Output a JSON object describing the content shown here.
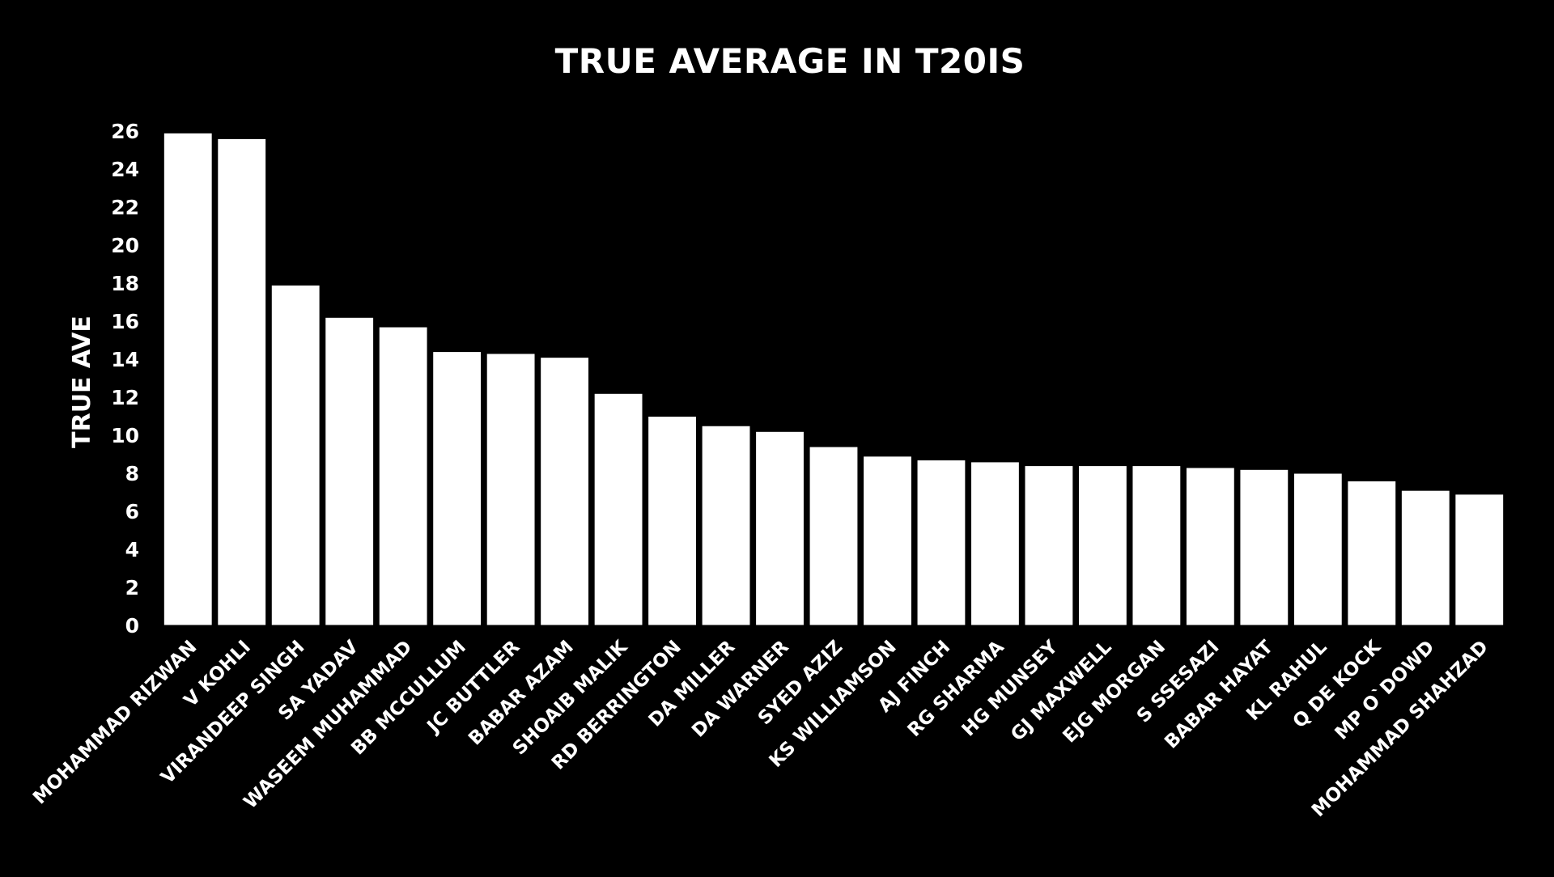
{
  "colors": {
    "background": "#000000",
    "bar": "#ffffff",
    "text": "#ffffff",
    "bar_stroke": "#000000"
  },
  "chart_data": {
    "type": "bar",
    "title": "TRUE AVERAGE IN T20IS",
    "xlabel": "",
    "ylabel": "TRUE AVE",
    "ylim": [
      0,
      26
    ],
    "yticks": [
      0,
      2,
      4,
      6,
      8,
      10,
      12,
      14,
      16,
      18,
      20,
      22,
      24,
      26
    ],
    "grid": false,
    "legend": "none",
    "categories": [
      "MOHAMMAD RIZWAN",
      "V KOHLI",
      "VIRANDEEP SINGH",
      "SA YADAV",
      "WASEEM MUHAMMAD",
      "BB MCCULLUM",
      "JC BUTTLER",
      "BABAR AZAM",
      "SHOAIB MALIK",
      "RD BERRINGTON",
      "DA MILLER",
      "DA WARNER",
      "SYED AZIZ",
      "KS WILLIAMSON",
      "AJ FINCH",
      "RG SHARMA",
      "HG MUNSEY",
      "GJ MAXWELL",
      "EJG MORGAN",
      "S SSESAZI",
      "BABAR HAYAT",
      "KL RAHUL",
      "Q DE KOCK",
      "MP O`DOWD",
      "MOHAMMAD SHAHZAD"
    ],
    "values": [
      25.9,
      25.6,
      17.9,
      16.2,
      15.7,
      14.4,
      14.3,
      14.1,
      12.2,
      11.0,
      10.5,
      10.2,
      9.4,
      8.9,
      8.7,
      8.6,
      8.4,
      8.4,
      8.4,
      8.3,
      8.2,
      8.0,
      7.6,
      7.1,
      6.9
    ]
  }
}
